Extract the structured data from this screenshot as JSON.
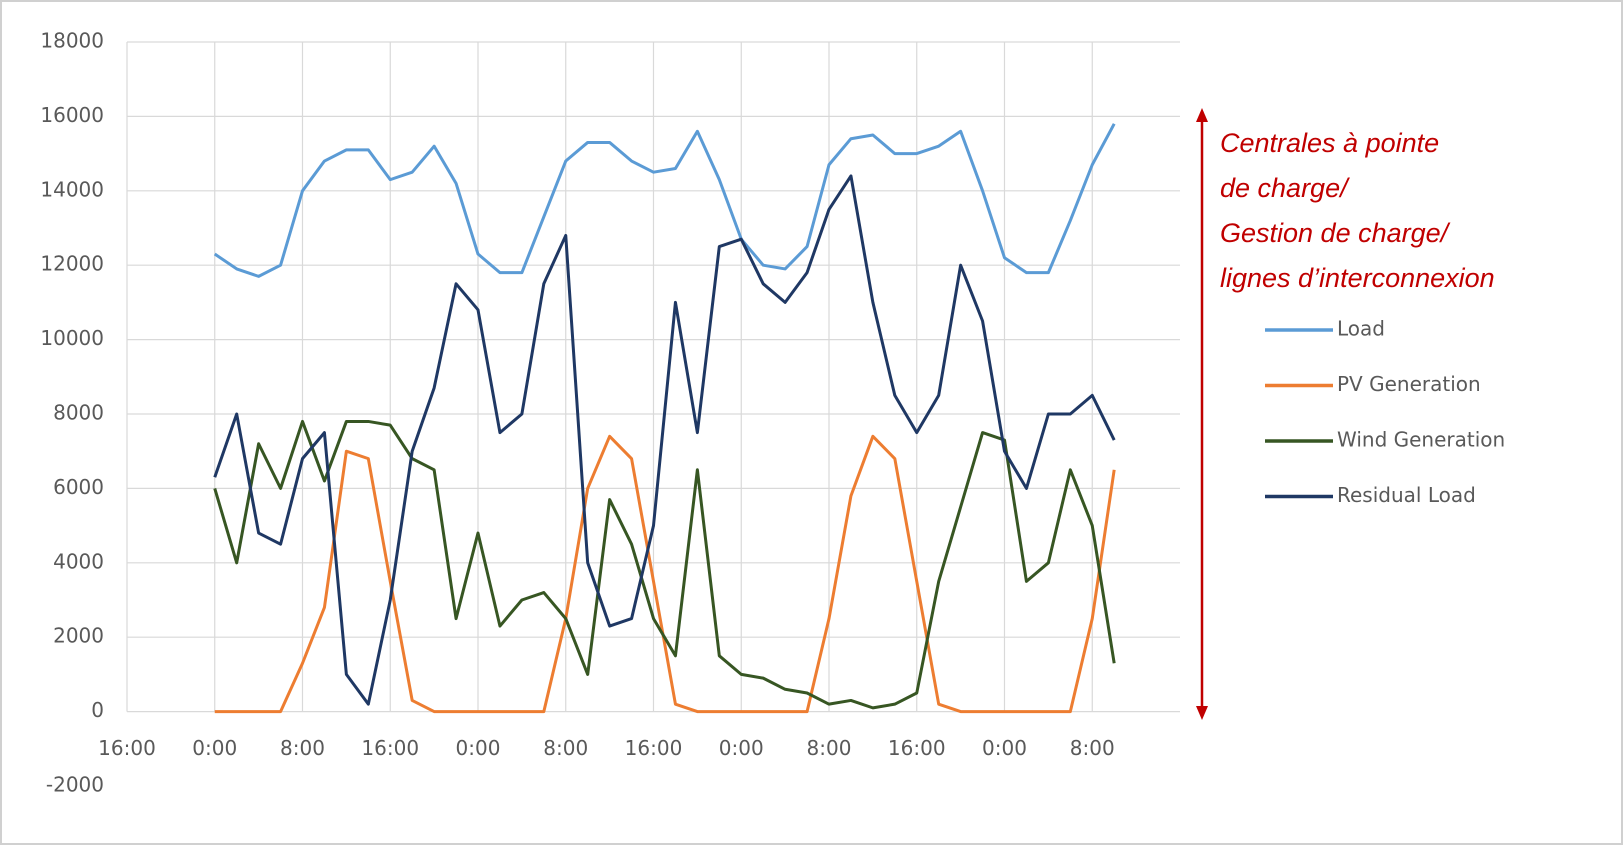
{
  "chart_data": {
    "type": "line",
    "x": [
      0,
      2,
      4,
      6,
      8,
      10,
      12,
      14,
      16,
      18,
      20,
      22,
      24,
      26,
      28,
      30,
      32,
      34,
      36,
      38,
      40,
      42,
      44,
      46,
      48,
      50,
      52,
      54,
      56,
      58,
      60,
      62,
      64,
      66,
      68,
      70,
      72,
      74,
      76,
      78,
      80,
      82
    ],
    "xlim": [
      -8,
      88
    ],
    "xticks": [
      {
        "value": -8,
        "label": "16:00"
      },
      {
        "value": 0,
        "label": "0:00"
      },
      {
        "value": 8,
        "label": "8:00"
      },
      {
        "value": 16,
        "label": "16:00"
      },
      {
        "value": 24,
        "label": "0:00"
      },
      {
        "value": 32,
        "label": "8:00"
      },
      {
        "value": 40,
        "label": "16:00"
      },
      {
        "value": 48,
        "label": "0:00"
      },
      {
        "value": 56,
        "label": "8:00"
      },
      {
        "value": 64,
        "label": "16:00"
      },
      {
        "value": 72,
        "label": "0:00"
      },
      {
        "value": 80,
        "label": "8:00"
      }
    ],
    "ylim": [
      -2000,
      18000
    ],
    "yticks": [
      -2000,
      0,
      2000,
      4000,
      6000,
      8000,
      10000,
      12000,
      14000,
      16000,
      18000
    ],
    "grid": true,
    "legend": "right",
    "series": [
      {
        "name": "Load",
        "color": "#5b9bd5",
        "values": [
          12300,
          11900,
          11700,
          12000,
          14000,
          14800,
          15100,
          15100,
          14300,
          14500,
          15200,
          14200,
          12300,
          11800,
          11800,
          13300,
          14800,
          15300,
          15300,
          14800,
          14500,
          14600,
          15600,
          14300,
          12700,
          12000,
          11900,
          12500,
          14700,
          15400,
          15500,
          15000,
          15000,
          15200,
          15600,
          14000,
          12200,
          11800,
          11800,
          13200,
          14700,
          15800
        ]
      },
      {
        "name": "PV Generation",
        "color": "#ed7d31",
        "values": [
          0,
          0,
          0,
          0,
          1300,
          2800,
          7000,
          6800,
          3500,
          300,
          0,
          0,
          0,
          0,
          0,
          0,
          2500,
          6000,
          7400,
          6800,
          3500,
          200,
          0,
          0,
          0,
          0,
          0,
          0,
          2500,
          5800,
          7400,
          6800,
          3500,
          200,
          0,
          0,
          0,
          0,
          0,
          0,
          2500,
          6500
        ]
      },
      {
        "name": "Wind Generation",
        "color": "#375623",
        "values": [
          6000,
          4000,
          7200,
          6000,
          7800,
          6200,
          7800,
          7800,
          7700,
          6800,
          6500,
          2500,
          4800,
          2300,
          3000,
          3200,
          2500,
          1000,
          5700,
          4500,
          2500,
          1500,
          6500,
          1500,
          1000,
          900,
          600,
          500,
          200,
          300,
          100,
          200,
          500,
          3500,
          5500,
          7500,
          7300,
          3500,
          4000,
          6500,
          5000,
          1300
        ]
      },
      {
        "name": "Residual Load",
        "color": "#1f3864",
        "values": [
          6300,
          8000,
          4800,
          4500,
          6800,
          7500,
          1000,
          200,
          3000,
          7000,
          8700,
          11500,
          10800,
          7500,
          8000,
          11500,
          12800,
          4000,
          2300,
          2500,
          5000,
          11000,
          7500,
          12500,
          12700,
          11500,
          11000,
          11800,
          13500,
          14400,
          11000,
          8500,
          7500,
          8500,
          12000,
          10500,
          7000,
          6000,
          8000,
          8000,
          8500,
          7300
        ]
      }
    ],
    "annotation": [
      "Centrales à pointe",
      "de charge/",
      "Gestion de charge/",
      "lignes d’interconnexion"
    ]
  }
}
